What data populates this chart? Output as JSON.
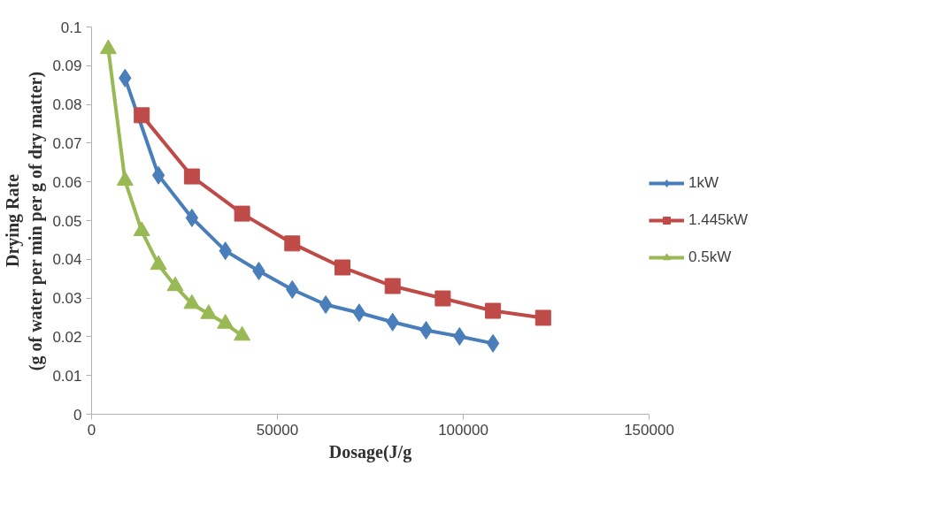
{
  "chart_data": {
    "type": "line",
    "xlabel": "Dosage(J/g",
    "ylabel": "Drying Rate\n(g of water per min per g of dry matter)",
    "xlim": [
      0,
      150000
    ],
    "xticks": [
      0,
      50000,
      100000,
      150000
    ],
    "ylim": [
      0,
      0.1
    ],
    "yticks": [
      0,
      0.01,
      0.02,
      0.03,
      0.04,
      0.05,
      0.06,
      0.07,
      0.08,
      0.09,
      0.1
    ],
    "grid": false,
    "legend": "right",
    "line_style": "solid",
    "series": [
      {
        "name": "1kW",
        "color": "#4a7ebb",
        "marker": "diamond",
        "x": [
          9000,
          18000,
          27000,
          36000,
          45000,
          54000,
          63000,
          72000,
          81000,
          90000,
          99000,
          108000
        ],
        "values": [
          0.0868,
          0.0617,
          0.0507,
          0.0422,
          0.037,
          0.0322,
          0.0283,
          0.0262,
          0.0238,
          0.0217,
          0.0201,
          0.0183
        ]
      },
      {
        "name": "1.445kW",
        "color": "#be4b48",
        "marker": "square",
        "x": [
          13500,
          27000,
          40500,
          54000,
          67500,
          81000,
          94500,
          108000,
          121500
        ],
        "values": [
          0.0772,
          0.0614,
          0.0518,
          0.0441,
          0.0379,
          0.0331,
          0.0299,
          0.0267,
          0.0249
        ]
      },
      {
        "name": "0.5kW",
        "color": "#98b954",
        "marker": "triangle",
        "x": [
          4500,
          9000,
          13500,
          18000,
          22500,
          27000,
          31500,
          36000,
          40500
        ],
        "values": [
          0.0943,
          0.0603,
          0.0473,
          0.0386,
          0.0331,
          0.0285,
          0.0259,
          0.0234,
          0.0203
        ]
      }
    ]
  }
}
